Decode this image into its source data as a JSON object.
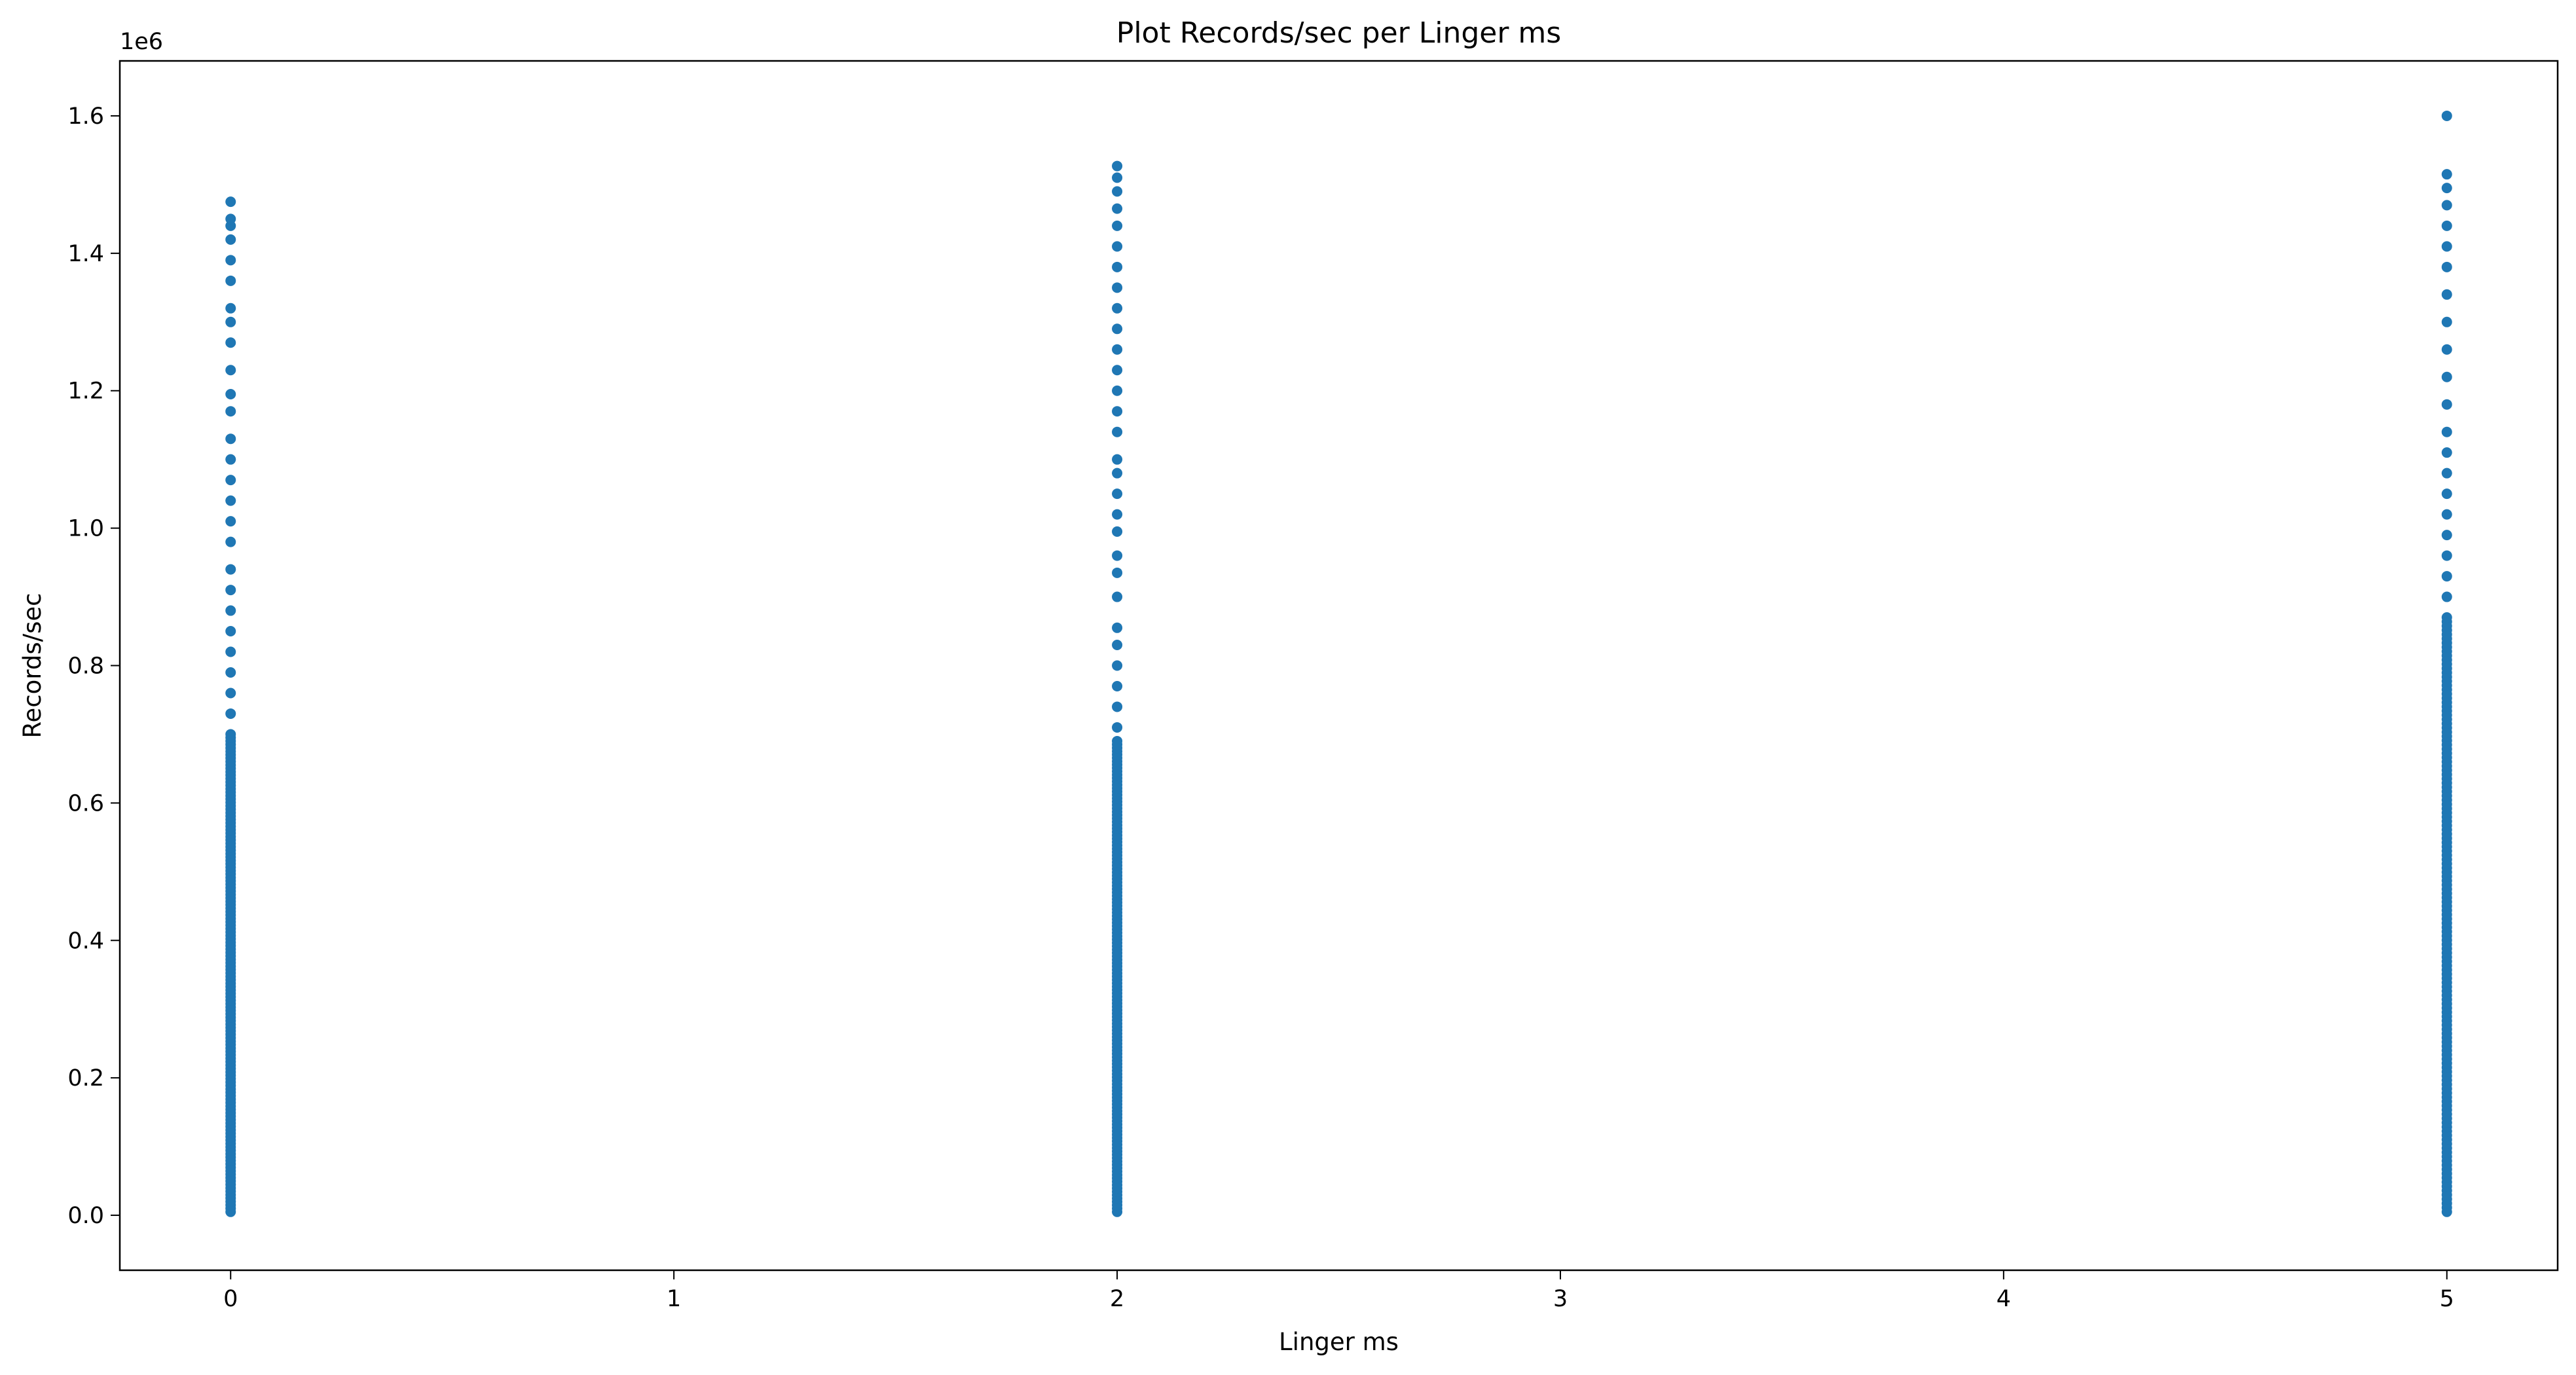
{
  "chart_data": {
    "type": "scatter",
    "title": "Plot Records/sec per Linger ms",
    "xlabel": "Linger ms",
    "ylabel": "Records/sec",
    "y_offset_label": "1e6",
    "xlim": [
      -0.25,
      5.25
    ],
    "ylim": [
      -80000,
      1680000
    ],
    "x_ticks": [
      0,
      1,
      2,
      3,
      4,
      5
    ],
    "x_tick_labels": [
      "0",
      "1",
      "2",
      "3",
      "4",
      "5"
    ],
    "y_ticks": [
      0,
      200000,
      400000,
      600000,
      800000,
      1000000,
      1200000,
      1400000,
      1600000
    ],
    "y_tick_labels": [
      "0.0",
      "0.2",
      "0.4",
      "0.6",
      "0.8",
      "1.0",
      "1.2",
      "1.4",
      "1.6"
    ],
    "grid": false,
    "legend": "none",
    "marker_color": "#1f77b4",
    "groups": [
      {
        "x": 0,
        "y_min": 5000,
        "y_max": 1475000,
        "dense_ranges": [
          [
            5000,
            700000
          ]
        ],
        "sparse_y": [
          730000,
          760000,
          790000,
          820000,
          850000,
          880000,
          910000,
          940000,
          980000,
          1010000,
          1040000,
          1070000,
          1100000,
          1130000,
          1170000,
          1195000,
          1230000,
          1270000,
          1300000,
          1320000,
          1360000,
          1390000,
          1420000,
          1440000,
          1450000,
          1475000
        ]
      },
      {
        "x": 2,
        "y_min": 5000,
        "y_max": 1527000,
        "dense_ranges": [
          [
            5000,
            690000
          ]
        ],
        "sparse_y": [
          710000,
          740000,
          770000,
          800000,
          830000,
          855000,
          900000,
          935000,
          960000,
          995000,
          1020000,
          1050000,
          1080000,
          1100000,
          1140000,
          1170000,
          1200000,
          1230000,
          1260000,
          1290000,
          1320000,
          1350000,
          1380000,
          1410000,
          1440000,
          1465000,
          1490000,
          1510000,
          1527000
        ]
      },
      {
        "x": 5,
        "y_min": 5000,
        "y_max": 1600000,
        "dense_ranges": [
          [
            5000,
            870000
          ]
        ],
        "sparse_y": [
          900000,
          930000,
          960000,
          990000,
          1020000,
          1050000,
          1080000,
          1110000,
          1140000,
          1180000,
          1220000,
          1260000,
          1300000,
          1340000,
          1380000,
          1410000,
          1440000,
          1470000,
          1495000,
          1515000,
          1600000
        ]
      }
    ]
  }
}
